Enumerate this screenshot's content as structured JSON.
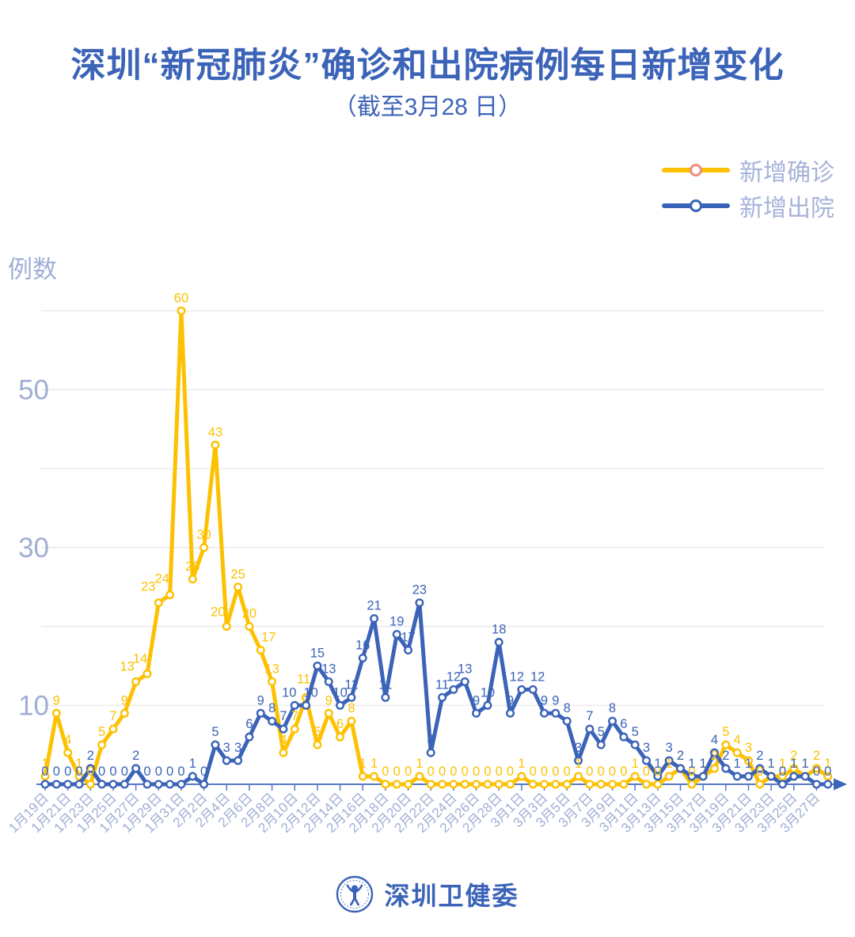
{
  "title": "深圳“新冠肺炎”确诊和出院病例每日新增变化",
  "subtitle": "（截至3月28 日）",
  "y_axis_title": "例数",
  "legend": [
    {
      "label": "新增确诊",
      "line_color": "#fdc101",
      "marker_border": "#f08c7b"
    },
    {
      "label": "新增出院",
      "line_color": "#3b63b8",
      "marker_border": "#3b63b8"
    }
  ],
  "footer": {
    "logo_text": "深圳卫健委"
  },
  "colors": {
    "brand_blue": "#3b63b8",
    "accent_yellow": "#fdc101",
    "axis_text": "#a0aed5",
    "gridline": "#e6e6e6",
    "axis_line": "#5578c8"
  },
  "chart_data": {
    "type": "line",
    "x": [
      "1月19日",
      "1月20日",
      "1月21日",
      "1月22日",
      "1月23日",
      "1月24日",
      "1月25日",
      "1月26日",
      "1月27日",
      "1月28日",
      "1月29日",
      "1月30日",
      "1月31日",
      "2月1日",
      "2月2日",
      "2月3日",
      "2月4日",
      "2月5日",
      "2月6日",
      "2月7日",
      "2月8日",
      "2月9日",
      "2月10日",
      "2月11日",
      "2月12日",
      "2月13日",
      "2月14日",
      "2月15日",
      "2月16日",
      "2月17日",
      "2月18日",
      "2月19日",
      "2月20日",
      "2月21日",
      "2月22日",
      "2月23日",
      "2月24日",
      "2月25日",
      "2月26日",
      "2月27日",
      "2月28日",
      "2月29日",
      "3月1日",
      "3月2日",
      "3月3日",
      "3月4日",
      "3月5日",
      "3月6日",
      "3月7日",
      "3月8日",
      "3月9日",
      "3月10日",
      "3月11日",
      "3月12日",
      "3月13日",
      "3月14日",
      "3月15日",
      "3月16日",
      "3月17日",
      "3月18日",
      "3月19日",
      "3月20日",
      "3月21日",
      "3月22日",
      "3月23日",
      "3月24日",
      "3月25日",
      "3月26日",
      "3月27日",
      "3月28日"
    ],
    "x_label_step": 2,
    "series": [
      {
        "name": "新增确诊",
        "color": "#fdc101",
        "values": [
          1,
          9,
          4,
          1,
          0,
          5,
          7,
          9,
          13,
          14,
          23,
          24,
          60,
          26,
          30,
          43,
          20,
          25,
          20,
          17,
          13,
          4,
          7,
          11,
          5,
          9,
          6,
          8,
          1,
          1,
          0,
          0,
          0,
          1,
          0,
          0,
          0,
          0,
          0,
          0,
          0,
          0,
          1,
          0,
          0,
          0,
          0,
          1,
          0,
          0,
          0,
          0,
          1,
          0,
          0,
          1,
          2,
          0,
          1,
          2,
          5,
          4,
          3,
          0,
          1,
          1,
          2,
          1,
          2,
          1
        ]
      },
      {
        "name": "新增出院",
        "color": "#3b63b8",
        "values": [
          0,
          0,
          0,
          0,
          2,
          0,
          0,
          0,
          2,
          0,
          0,
          0,
          0,
          1,
          0,
          5,
          3,
          3,
          6,
          9,
          8,
          7,
          10,
          10,
          15,
          13,
          10,
          11,
          16,
          21,
          11,
          19,
          17,
          23,
          4,
          11,
          12,
          13,
          9,
          10,
          18,
          9,
          12,
          12,
          9,
          9,
          8,
          3,
          7,
          5,
          8,
          6,
          5,
          3,
          1,
          3,
          2,
          1,
          1,
          4,
          2,
          1,
          1,
          2,
          1,
          0,
          1,
          1,
          0,
          0
        ]
      }
    ],
    "ylabel": "例数",
    "ylim": [
      0,
      60
    ],
    "gridlines": [
      10,
      20,
      30,
      40,
      50,
      60
    ],
    "y_ticks_labeled": [
      10,
      30,
      50
    ],
    "legend_position": "top-right",
    "point_labels": true
  }
}
